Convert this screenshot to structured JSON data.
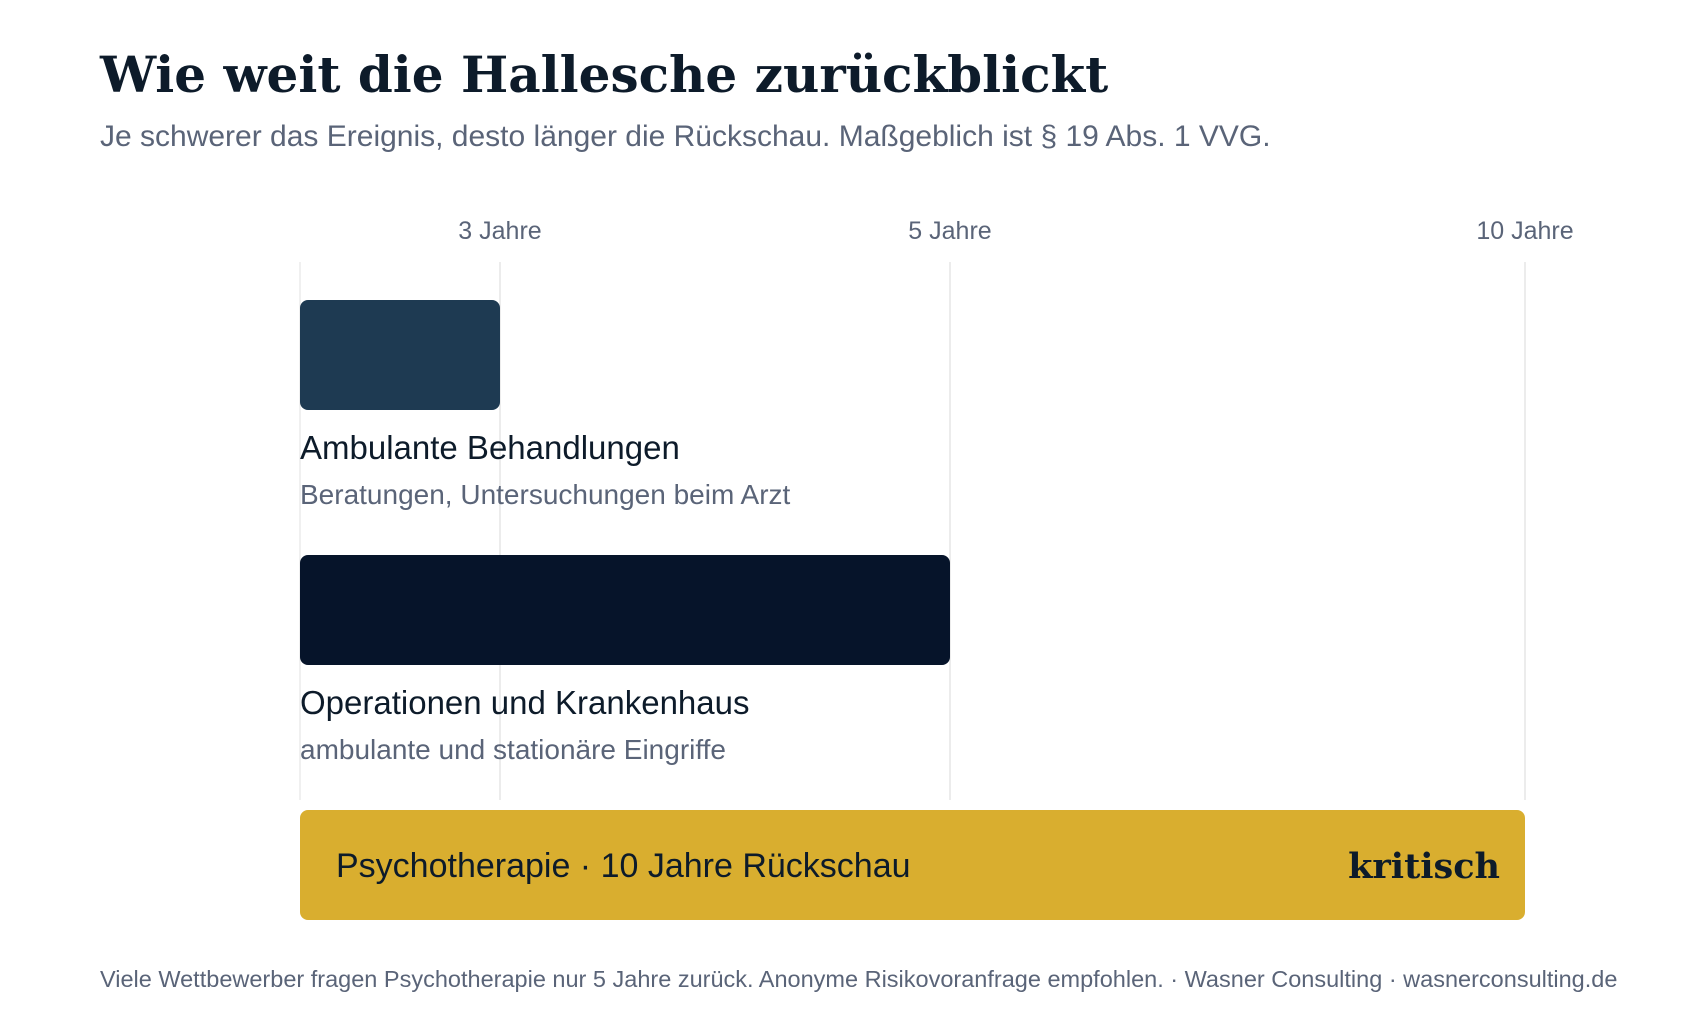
{
  "header": {
    "title": "Wie weit die Hallesche zurückblickt",
    "subtitle": "Je schwerer das Ereignis, desto länger die Rückschau. Maßgeblich ist § 19 Abs. 1 VVG."
  },
  "chart_data": {
    "type": "bar",
    "orientation": "horizontal",
    "x_axis": {
      "ticks": [
        {
          "value": 3,
          "label": "3 Jahre"
        },
        {
          "value": 5,
          "label": "5 Jahre"
        },
        {
          "value": 10,
          "label": "10 Jahre"
        }
      ],
      "grid": true,
      "position": "top"
    },
    "bars": [
      {
        "label": "Ambulante Behandlungen",
        "sublabel": "Beratungen, Untersuchungen beim Arzt",
        "value": 3,
        "color": "#1e3a52"
      },
      {
        "label": "Operationen und Krankenhaus",
        "sublabel": "ambulante und stationäre Eingriffe",
        "value": 5,
        "color": "#06142a"
      }
    ],
    "highlight": {
      "label": "Psychotherapie · 10 Jahre Rückschau",
      "badge": "kritisch",
      "value": 10,
      "color": "#d9ae2f"
    }
  },
  "footer": {
    "note": "Viele Wettbewerber fragen Psychotherapie nur 5 Jahre zurück. Anonyme Risikovoranfrage empfohlen. · Wasner Consulting · wasnerconsulting.de"
  }
}
